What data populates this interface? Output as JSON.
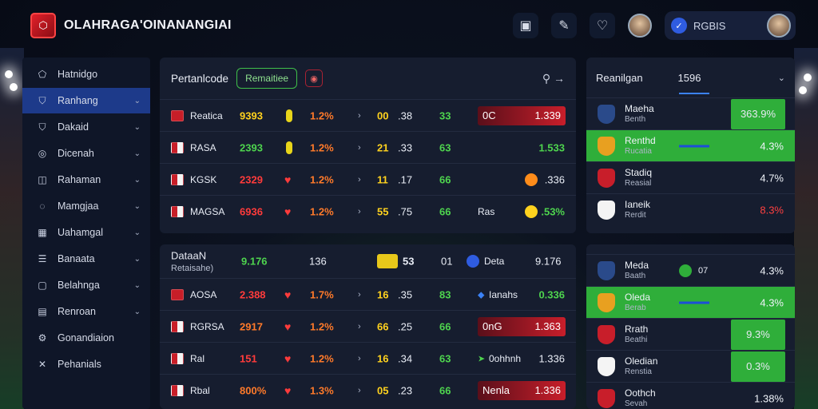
{
  "header": {
    "brand": "OLAHRAGA'OINANANGIAI",
    "icons": [
      "image-icon",
      "puzzle-icon",
      "heart-icon"
    ],
    "profile_name": "RGBIS"
  },
  "sidebar": {
    "items": [
      {
        "label": "Hatnidgo",
        "icon": "pentagon-icon",
        "chev": false,
        "active": false
      },
      {
        "label": "Ranhang",
        "icon": "shield-icon",
        "chev": true,
        "active": true
      },
      {
        "label": "Dakaid",
        "icon": "shield-icon",
        "chev": true,
        "active": false
      },
      {
        "label": "Dicenah",
        "icon": "globe-icon",
        "chev": true,
        "active": false
      },
      {
        "label": "Rahaman",
        "icon": "chart-icon",
        "chev": true,
        "active": false
      },
      {
        "label": "Mamgjaa",
        "icon": "ball-icon",
        "chev": true,
        "active": false
      },
      {
        "label": "Uahamgal",
        "icon": "grid-icon",
        "chev": true,
        "active": false
      },
      {
        "label": "Banaata",
        "icon": "list-icon",
        "chev": true,
        "active": false
      },
      {
        "label": "Belahnga",
        "icon": "square-icon",
        "chev": true,
        "active": false
      },
      {
        "label": "Renroan",
        "icon": "table-icon",
        "chev": true,
        "active": false
      },
      {
        "label": "Gonandiaion",
        "icon": "settings-icon",
        "chev": false,
        "active": false
      },
      {
        "label": "Pehanials",
        "icon": "tools-icon",
        "chev": false,
        "active": false
      }
    ]
  },
  "panel1": {
    "title": "Pertanlcode",
    "tag": "Remaitiee",
    "rows": [
      {
        "team": "Reatica",
        "team_sub": "F",
        "a": "9393",
        "a_color": "yellow",
        "b": "1.2%",
        "c": "00",
        "d": ".38",
        "e": "33",
        "f_left": "0C",
        "f_right": "1.339",
        "f_style": "bar"
      },
      {
        "team": "RASA",
        "team_sub": "",
        "a": "2393",
        "a_color": "green",
        "b": "1.2%",
        "c": "21",
        "d": ".33",
        "e": "63",
        "f_left": "",
        "f_right": "1.533",
        "f_style": "green"
      },
      {
        "team": "KGSK",
        "team_sub": "",
        "a": "2329",
        "a_color": "red",
        "b": "1.2%",
        "c": "11",
        "d": ".17",
        "e": "66",
        "f_left": "",
        "f_right": ".336",
        "f_style": "orange"
      },
      {
        "team": "MAGSA",
        "team_sub": "",
        "a": "6936",
        "a_color": "red",
        "b": "1.2%",
        "c": "55",
        "d": ".75",
        "e": "66",
        "f_left": "Ras",
        "f_right": ".53%",
        "f_style": "yellow"
      }
    ]
  },
  "panel2": {
    "title": "DataaN",
    "subtitle": "Retaisahe)",
    "head_a": "9.176",
    "head_b": "136",
    "head_c": "53",
    "head_d": "01",
    "head_e_label": "Deta",
    "head_e_val": "9.176",
    "rows": [
      {
        "team": "AOSA",
        "a": "2.388",
        "a_color": "red",
        "b": "1.7%",
        "c": "16",
        "d": ".35",
        "e": "83",
        "f_left": "Ianahs",
        "f_right": "0.336",
        "f_style": "plain-green"
      },
      {
        "team": "RGRSA",
        "a": "2917",
        "a_color": "orange",
        "b": "1.2%",
        "c": "66",
        "d": ".25",
        "e": "66",
        "f_left": "0nG",
        "f_right": "1.363",
        "f_style": "bar"
      },
      {
        "team": "Ral",
        "a": "151",
        "a_color": "red",
        "b": "1.2%",
        "c": "16",
        "d": ".34",
        "e": "63",
        "f_left": "0ohhnh",
        "f_right": "1.336",
        "f_style": "plain-blue"
      },
      {
        "team": "Rbal",
        "a": "800%",
        "a_color": "orange",
        "b": "1.3%",
        "c": "05",
        "d": ".23",
        "e": "66",
        "f_left": "Nenla",
        "f_right": "1.336",
        "f_style": "bar"
      }
    ]
  },
  "panel3": {
    "title": "Reanilgan",
    "tab": "1596",
    "rows": [
      {
        "name": "Maeha",
        "sub": "Benth",
        "pct": "363.9%",
        "highlight": false,
        "pct_box": true
      },
      {
        "name": "Renthd",
        "sub": "Rucatia",
        "pct": "4.3%",
        "highlight": true,
        "pct_box": false
      },
      {
        "name": "Stadiq",
        "sub": "Reasial",
        "pct": "4.7%",
        "highlight": false,
        "pct_box": false
      },
      {
        "name": "Ianeik",
        "sub": "Rerdit",
        "pct": "8.3%",
        "highlight": false,
        "pct_box": false
      }
    ]
  },
  "panel4": {
    "rows": [
      {
        "name": "Meda",
        "sub": "Baath",
        "mid": "07",
        "pct": "4.3%",
        "highlight": false,
        "pct_box": false
      },
      {
        "name": "Oleda",
        "sub": "Berab",
        "mid": "",
        "pct": "4.3%",
        "highlight": true,
        "pct_box": false
      },
      {
        "name": "Rrath",
        "sub": "Beathi",
        "mid": "",
        "pct": "9.3%",
        "highlight": false,
        "pct_box": true
      },
      {
        "name": "Oledian",
        "sub": "Renstia",
        "mid": "",
        "pct": "0.3%",
        "highlight": false,
        "pct_box": true
      },
      {
        "name": "Oothch",
        "sub": "Sevah",
        "mid": "",
        "pct": "1.38%",
        "highlight": false,
        "pct_box": false
      }
    ]
  },
  "colors": {
    "accent_blue": "#1d3a8a",
    "accent_green": "#2fae3a",
    "accent_red": "#c81e2a"
  }
}
